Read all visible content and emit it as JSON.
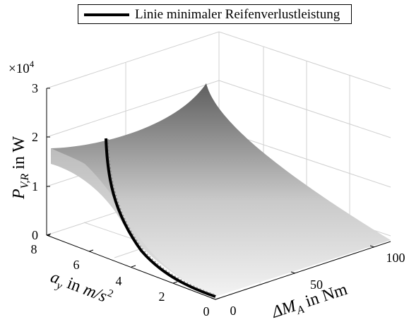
{
  "legend": {
    "label": "Linie minimaler Reifenverlustleistung"
  },
  "axes": {
    "exponent_label": "×10",
    "exponent_power": "4",
    "z_title_main": "P",
    "z_title_sub": "V,R",
    "z_title_unit": " in W",
    "y_title_main": "a",
    "y_title_sub": "y",
    "y_title_mid": " in ",
    "y_title_unit_main": "m/s",
    "y_title_unit_sup": "2",
    "x_title_main": "ΔM",
    "x_title_sub": "A",
    "x_title_unit": " in Nm"
  },
  "chart_data": {
    "type": "surface",
    "title": "",
    "xlabel": "ΔM_A in Nm",
    "ylabel": "a_y in m/s^2",
    "zlabel": "P_V,R in W",
    "z_exponent": 4,
    "xlim": [
      0,
      110
    ],
    "ylim": [
      0,
      8
    ],
    "zlim": [
      0,
      3
    ],
    "xticks": [
      "0",
      "50",
      "100"
    ],
    "yticks": [
      "0",
      "2",
      "4",
      "6",
      "8"
    ],
    "zticks": [
      "0",
      "1",
      "2",
      "3"
    ],
    "grid": true,
    "legend_position": "top",
    "surface": {
      "description_values_z_x1e4_at_x0": [
        0,
        0.05,
        0.22,
        0.5,
        0.92,
        1.42,
        2.0
      ],
      "y_grid": [
        0,
        1.33,
        2.67,
        4,
        5.33,
        6.67,
        8
      ],
      "z_at_corner_x110_y8": 2.68,
      "z_at_x0_y8": 2.0,
      "color_low": "#f2f2f2",
      "color_high": "#5a5a5a"
    },
    "series": [
      {
        "name": "Linie minimaler Reifenverlustleistung",
        "color": "#000000",
        "x": [
          0,
          0,
          0,
          0,
          0,
          0,
          0
        ],
        "y": [
          0,
          1.33,
          2.67,
          4,
          5.33,
          6.67,
          8
        ],
        "z": [
          0,
          0.05,
          0.22,
          0.5,
          0.92,
          1.42,
          2.0
        ]
      }
    ]
  }
}
